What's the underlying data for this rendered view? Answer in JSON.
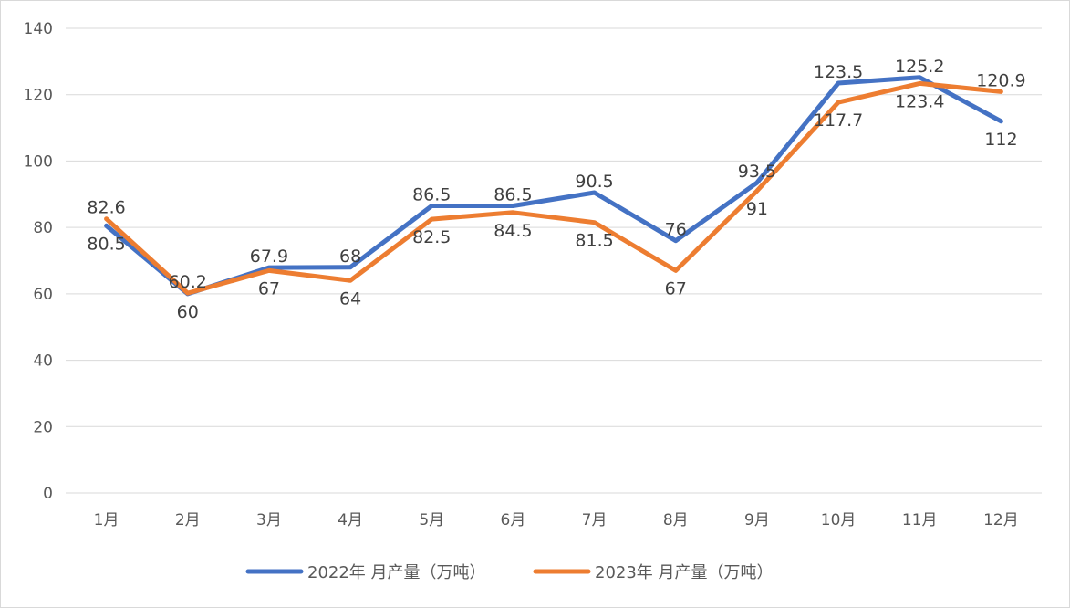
{
  "chart_data": {
    "type": "line",
    "title": "",
    "xlabel": "",
    "ylabel": "",
    "categories": [
      "1月",
      "2月",
      "3月",
      "4月",
      "5月",
      "6月",
      "7月",
      "8月",
      "9月",
      "10月",
      "11月",
      "12月"
    ],
    "ylim": [
      0,
      140
    ],
    "yticks": [
      0,
      20,
      40,
      60,
      80,
      100,
      120,
      140
    ],
    "grid": true,
    "legend_position": "bottom",
    "series": [
      {
        "name": "2022年 月产量（万吨）",
        "color": "#4472c4",
        "values": [
          80.5,
          60,
          67.9,
          68,
          86.5,
          86.5,
          90.5,
          76,
          93.5,
          123.5,
          125.2,
          112
        ],
        "labels": [
          "80.5",
          "60",
          "67.9",
          "68",
          "86.5",
          "86.5",
          "90.5",
          "76",
          "93.5",
          "123.5",
          "125.2",
          "112"
        ]
      },
      {
        "name": "2023年 月产量（万吨）",
        "color": "#ed7d31",
        "values": [
          82.6,
          60.2,
          67,
          64,
          82.5,
          84.5,
          81.5,
          67,
          91,
          117.7,
          123.4,
          120.9
        ],
        "labels": [
          "82.6",
          "60.2",
          "67",
          "64",
          "82.5",
          "84.5",
          "81.5",
          "67",
          "91",
          "117.7",
          "123.4",
          "120.9"
        ]
      }
    ]
  }
}
